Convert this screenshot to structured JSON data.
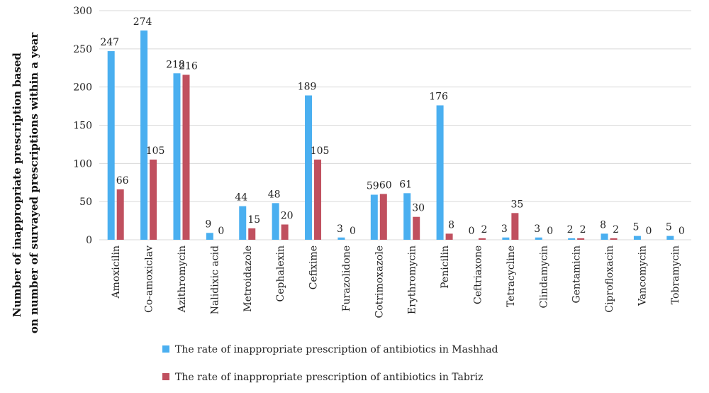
{
  "chart_data": {
    "type": "bar",
    "ylabel": [
      "Number of inappropriate prescription based",
      "on number of survayed prescriptions within a year"
    ],
    "xlabel": "",
    "ylim": [
      0,
      300
    ],
    "yticks": [
      0,
      50,
      100,
      150,
      200,
      250,
      300
    ],
    "grid": true,
    "legend_position": "bottom",
    "categories": [
      "Amoxicilin",
      "Co-amoxiclav",
      "Azithromycin",
      "Nalidixic acid",
      "Metroidazole",
      "Cephalexin",
      "Cefixime",
      "Furazolidone",
      "Cotrimoxazole",
      "Erythromycin",
      "Penicilin",
      "Ceftriaxone",
      "Tetracycline",
      "Clindamycin",
      "Gentamicin",
      "Ciprofloxacin",
      "Vancomycin",
      "Tobramycin"
    ],
    "series": [
      {
        "name": "The rate of inappropriate prescription of antibiotics in Mashhad",
        "color": "#4aaff0",
        "values": [
          247,
          274,
          218,
          9,
          44,
          48,
          189,
          3,
          59,
          61,
          176,
          0,
          3,
          3,
          2,
          8,
          5,
          5
        ],
        "labels": [
          "247",
          "274",
          "218",
          "9",
          "44",
          "48",
          "189",
          "3",
          "59",
          "61",
          "176",
          "0",
          "3",
          "3",
          "2",
          "8",
          "5",
          "5"
        ]
      },
      {
        "name": "The rate of inappropriate prescription of antibiotics in Tabriz",
        "color": "#c0505f",
        "values": [
          66,
          105,
          216,
          0,
          15,
          20,
          105,
          0,
          60,
          30,
          8,
          2,
          35,
          0,
          2,
          2,
          0,
          0
        ],
        "labels": [
          "66",
          "105",
          "216",
          "0",
          "15",
          "20",
          "105",
          "0",
          "60",
          "30",
          "8",
          "2",
          "35",
          "0",
          "2",
          "2",
          "0",
          "0"
        ]
      }
    ]
  }
}
